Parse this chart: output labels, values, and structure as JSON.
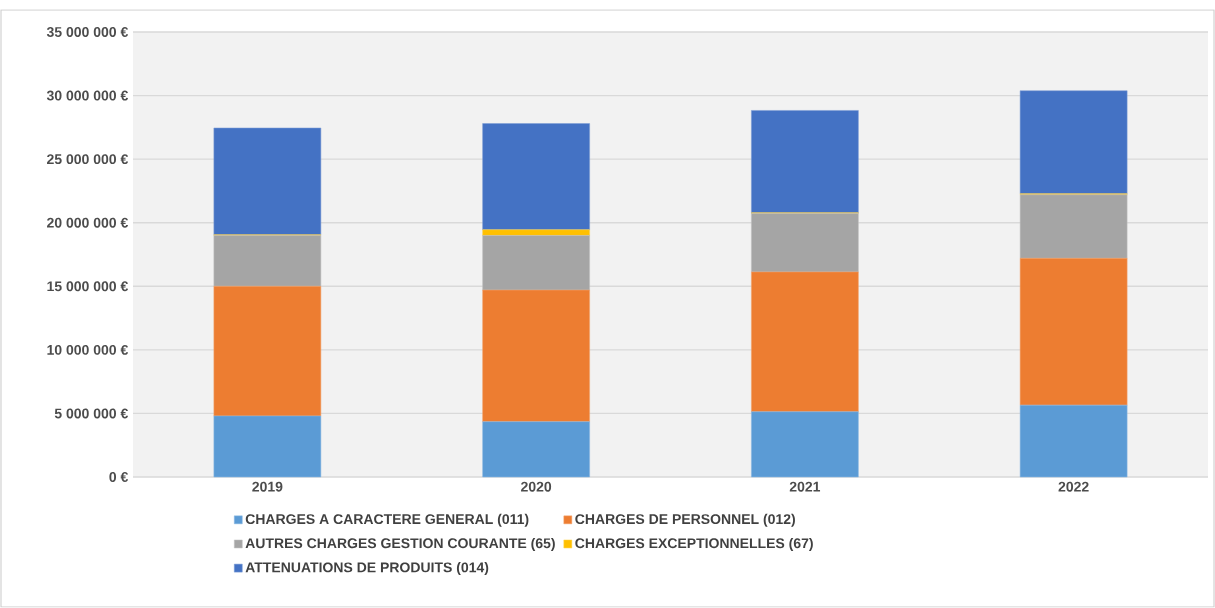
{
  "chart_data": {
    "type": "bar",
    "stacked": true,
    "categories": [
      "2019",
      "2020",
      "2021",
      "2022"
    ],
    "series": [
      {
        "name": "CHARGES A CARACTERE GENERAL (011)",
        "color": "#5b9bd5",
        "values": [
          4800000,
          4350000,
          5130000,
          5650000
        ]
      },
      {
        "name": "CHARGES DE PERSONNEL (012)",
        "color": "#ed7d31",
        "values": [
          10200000,
          10350000,
          11000000,
          11550000
        ]
      },
      {
        "name": "AUTRES CHARGES GESTION COURANTE (65)",
        "color": "#a5a5a5",
        "values": [
          4000000,
          4300000,
          4600000,
          5000000
        ]
      },
      {
        "name": "CHARGES EXCEPTIONNELLES (67)",
        "color": "#ffc000",
        "values": [
          50000,
          450000,
          50000,
          80000
        ]
      },
      {
        "name": "ATTENUATIONS DE PRODUITS (014)",
        "color": "#4472c4",
        "values": [
          8400000,
          8350000,
          8050000,
          8100000
        ]
      }
    ],
    "ylim": [
      0,
      35000000
    ],
    "yticks": [
      {
        "value": 0,
        "label": "0 €"
      },
      {
        "value": 5000000,
        "label": "5 000 000 €"
      },
      {
        "value": 10000000,
        "label": "10 000 000 €"
      },
      {
        "value": 15000000,
        "label": "15 000 000 €"
      },
      {
        "value": 20000000,
        "label": "20 000 000 €"
      },
      {
        "value": 25000000,
        "label": "25 000 000 €"
      },
      {
        "value": 30000000,
        "label": "30 000 000 €"
      },
      {
        "value": 35000000,
        "label": "35 000 000 €"
      }
    ],
    "grid": "y",
    "legend": "bottom"
  }
}
